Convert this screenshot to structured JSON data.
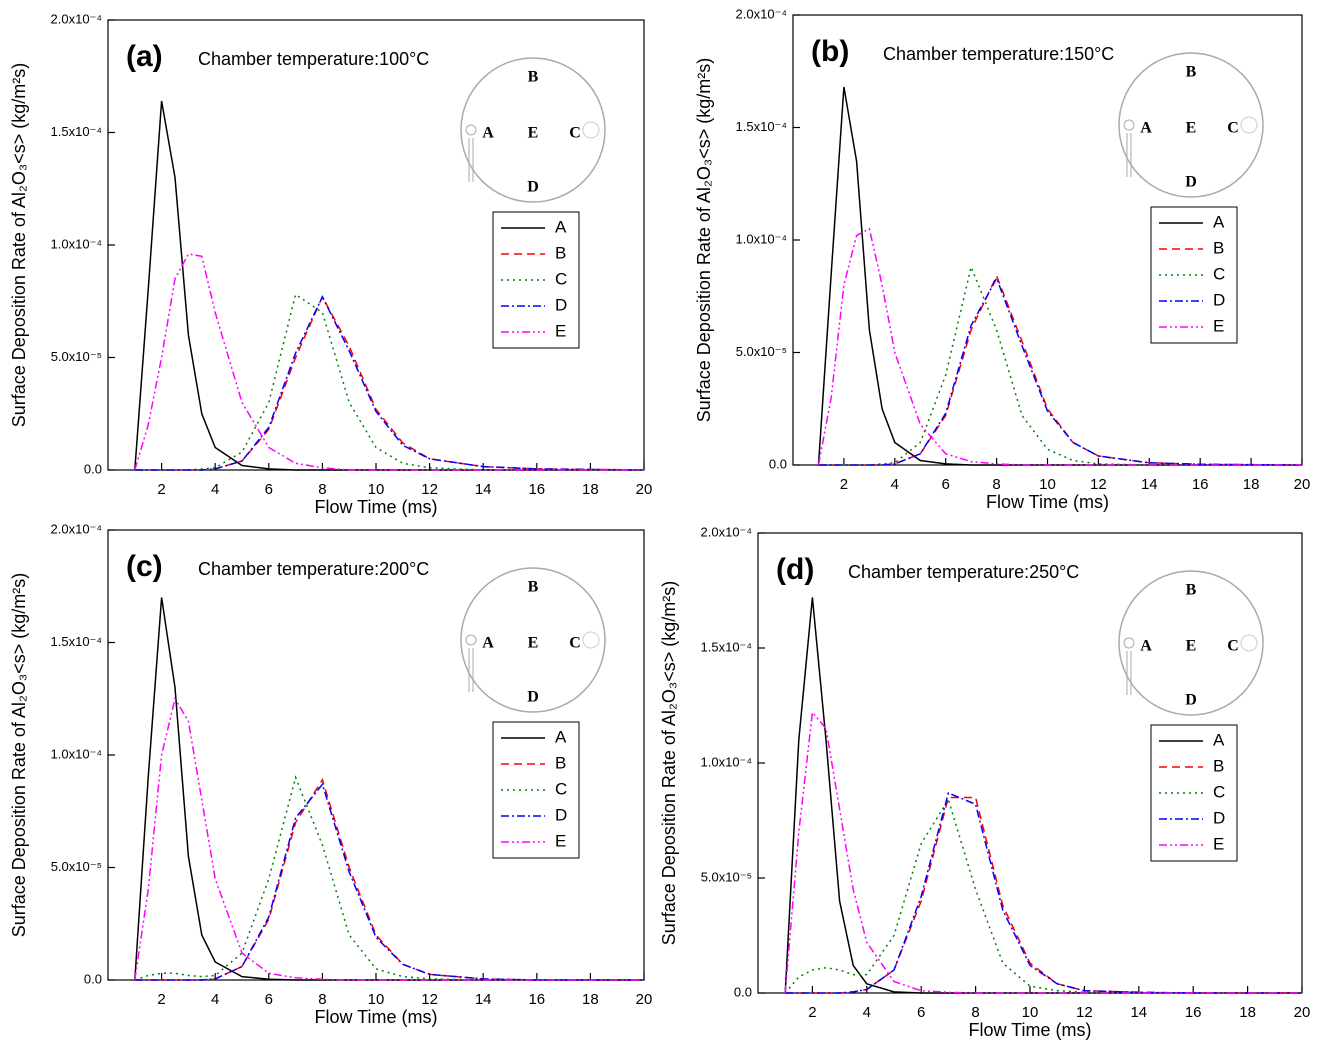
{
  "chart_data": [
    {
      "type": "line",
      "panel_label": "(a)",
      "annotation": "Chamber temperature:100°C",
      "xlabel": "Flow Time (ms)",
      "ylabel": "Surface Deposition Rate of Al₂O₃<s> (kg/m²s)",
      "inset_labels": [
        "A",
        "B",
        "C",
        "D",
        "E"
      ],
      "legend": "upper right",
      "xlim": [
        0,
        20
      ],
      "xticks": [
        2,
        4,
        6,
        8,
        10,
        12,
        14,
        16,
        18,
        20
      ],
      "ylim": [
        0,
        0.0002
      ],
      "yticks": [
        {
          "value": 0,
          "label": "0.0"
        },
        {
          "value": 5e-05,
          "label": "5.0x10⁻⁵"
        },
        {
          "value": 0.0001,
          "label": "1.0x10⁻⁴"
        },
        {
          "value": 0.00015,
          "label": "1.5x10⁻⁴"
        },
        {
          "value": 0.0002,
          "label": "2.0x10⁻⁴"
        }
      ],
      "x": [
        1,
        1.5,
        2,
        2.5,
        3,
        3.5,
        4,
        5,
        6,
        7,
        8,
        9,
        10,
        11,
        12,
        14,
        16,
        20
      ],
      "series": [
        {
          "name": "A",
          "color": "#000000",
          "dash": "solid",
          "values": [
            0,
            8e-05,
            0.000164,
            0.00013,
            6e-05,
            2.5e-05,
            1e-05,
            2e-06,
            5e-07,
            0,
            0,
            0,
            0,
            0,
            0,
            0,
            0,
            0
          ]
        },
        {
          "name": "B",
          "color": "#ff0000",
          "dash": "dashed",
          "values": [
            0,
            0,
            0,
            0,
            0,
            0,
            5e-07,
            4e-06,
            1.8e-05,
            5e-05,
            7.7e-05,
            5.5e-05,
            2.7e-05,
            1.2e-05,
            5e-06,
            1.5e-06,
            5e-07,
            0
          ]
        },
        {
          "name": "C",
          "color": "#008000",
          "dash": "dotted",
          "values": [
            0,
            0,
            0,
            0,
            0,
            5e-07,
            1e-06,
            8e-06,
            3e-05,
            7.8e-05,
            7e-05,
            3e-05,
            1e-05,
            3e-06,
            1e-06,
            0,
            0,
            0
          ]
        },
        {
          "name": "D",
          "color": "#0000ff",
          "dash": "dashdot",
          "values": [
            0,
            0,
            0,
            0,
            0,
            0,
            5e-07,
            4e-06,
            1.9e-05,
            5.2e-05,
            7.7e-05,
            5.3e-05,
            2.6e-05,
            1.1e-05,
            5e-06,
            1.5e-06,
            5e-07,
            0
          ]
        },
        {
          "name": "E",
          "color": "#ff00ff",
          "dash": "dashdotdot",
          "values": [
            0,
            2e-05,
            5e-05,
            8.5e-05,
            9.6e-05,
            9.5e-05,
            7e-05,
            3e-05,
            1e-05,
            3e-06,
            1e-06,
            0,
            0,
            0,
            0,
            0,
            0,
            0
          ]
        }
      ]
    },
    {
      "type": "line",
      "panel_label": "(b)",
      "annotation": "Chamber temperature:150°C",
      "xlabel": "Flow Time (ms)",
      "ylabel": "Surface Deposition Rate of Al₂O₃<s> (kg/m²s)",
      "inset_labels": [
        "A",
        "B",
        "C",
        "D",
        "E"
      ],
      "legend": "upper right",
      "xlim": [
        0,
        20
      ],
      "xticks": [
        2,
        4,
        6,
        8,
        10,
        12,
        14,
        16,
        18,
        20
      ],
      "ylim": [
        0,
        0.0002
      ],
      "yticks": [
        {
          "value": 0,
          "label": "0.0"
        },
        {
          "value": 5e-05,
          "label": "5.0x10⁻⁵"
        },
        {
          "value": 0.0001,
          "label": "1.0x10⁻⁴"
        },
        {
          "value": 0.00015,
          "label": "1.5x10⁻⁴"
        },
        {
          "value": 0.0002,
          "label": "2.0x10⁻⁴"
        }
      ],
      "x": [
        1,
        1.5,
        2,
        2.5,
        3,
        3.5,
        4,
        5,
        6,
        7,
        8,
        9,
        10,
        11,
        12,
        14,
        16,
        20
      ],
      "series": [
        {
          "name": "A",
          "color": "#000000",
          "dash": "solid",
          "values": [
            0,
            8.5e-05,
            0.000168,
            0.000135,
            6e-05,
            2.5e-05,
            1e-05,
            2e-06,
            5e-07,
            0,
            0,
            0,
            0,
            0,
            0,
            0,
            0,
            0
          ]
        },
        {
          "name": "B",
          "color": "#ff0000",
          "dash": "dashed",
          "values": [
            0,
            0,
            0,
            0,
            0,
            0,
            5e-07,
            5e-06,
            2.2e-05,
            6e-05,
            8.4e-05,
            5.5e-05,
            2.5e-05,
            1e-05,
            4e-06,
            1e-06,
            3e-07,
            0
          ]
        },
        {
          "name": "C",
          "color": "#008000",
          "dash": "dotted",
          "values": [
            0,
            0,
            0,
            0,
            0,
            5e-07,
            1e-06,
            1e-05,
            4e-05,
            8.8e-05,
            6e-05,
            2.2e-05,
            7e-06,
            2e-06,
            5e-07,
            0,
            0,
            0
          ]
        },
        {
          "name": "D",
          "color": "#0000ff",
          "dash": "dashdot",
          "values": [
            0,
            0,
            0,
            0,
            0,
            0,
            5e-07,
            5e-06,
            2.3e-05,
            6.2e-05,
            8.3e-05,
            5.3e-05,
            2.4e-05,
            1e-05,
            4e-06,
            1e-06,
            3e-07,
            0
          ]
        },
        {
          "name": "E",
          "color": "#ff00ff",
          "dash": "dashdotdot",
          "values": [
            0,
            3e-05,
            8e-05,
            0.000102,
            0.000105,
            8e-05,
            5e-05,
            1.8e-05,
            5e-06,
            1.5e-06,
            5e-07,
            0,
            0,
            0,
            0,
            0,
            0,
            0
          ]
        }
      ]
    },
    {
      "type": "line",
      "panel_label": "(c)",
      "annotation": "Chamber temperature:200°C",
      "xlabel": "Flow Time (ms)",
      "ylabel": "Surface Deposition Rate of Al₂O₃<s> (kg/m²s)",
      "inset_labels": [
        "A",
        "B",
        "C",
        "D",
        "E"
      ],
      "legend": "upper right",
      "xlim": [
        0,
        20
      ],
      "xticks": [
        2,
        4,
        6,
        8,
        10,
        12,
        14,
        16,
        18,
        20
      ],
      "ylim": [
        0,
        0.0002
      ],
      "yticks": [
        {
          "value": 0,
          "label": "0.0"
        },
        {
          "value": 5e-05,
          "label": "5.0x10⁻⁵"
        },
        {
          "value": 0.0001,
          "label": "1.0x10⁻⁴"
        },
        {
          "value": 0.00015,
          "label": "1.5x10⁻⁴"
        },
        {
          "value": 0.0002,
          "label": "2.0x10⁻⁴"
        }
      ],
      "x": [
        1,
        1.5,
        2,
        2.5,
        3,
        3.5,
        4,
        5,
        6,
        7,
        8,
        9,
        10,
        11,
        12,
        14,
        16,
        20
      ],
      "series": [
        {
          "name": "A",
          "color": "#000000",
          "dash": "solid",
          "values": [
            0,
            9e-05,
            0.00017,
            0.00013,
            5.5e-05,
            2e-05,
            8e-06,
            1.5e-06,
            3e-07,
            0,
            0,
            0,
            0,
            0,
            0,
            0,
            0,
            0
          ]
        },
        {
          "name": "B",
          "color": "#ff0000",
          "dash": "dashed",
          "values": [
            0,
            0,
            0,
            0,
            0,
            0,
            5e-07,
            6e-06,
            2.7e-05,
            7e-05,
            8.9e-05,
            5e-05,
            2e-05,
            7e-06,
            2.5e-06,
            5e-07,
            0,
            0
          ]
        },
        {
          "name": "C",
          "color": "#008000",
          "dash": "dotted",
          "values": [
            0,
            2e-06,
            3e-06,
            3e-06,
            2e-06,
            1.5e-06,
            2e-06,
            1.2e-05,
            4.5e-05,
            9e-05,
            6e-05,
            2e-05,
            5e-06,
            1.5e-06,
            5e-07,
            0,
            0,
            0
          ]
        },
        {
          "name": "D",
          "color": "#0000ff",
          "dash": "dashdot",
          "values": [
            0,
            0,
            0,
            0,
            0,
            0,
            5e-07,
            6e-06,
            2.8e-05,
            7.2e-05,
            8.7e-05,
            4.8e-05,
            1.9e-05,
            7e-06,
            2.5e-06,
            5e-07,
            0,
            0
          ]
        },
        {
          "name": "E",
          "color": "#ff00ff",
          "dash": "dashdotdot",
          "values": [
            0,
            4e-05,
            0.0001,
            0.000125,
            0.000115,
            8e-05,
            4.5e-05,
            1.2e-05,
            3e-06,
            1e-06,
            3e-07,
            0,
            0,
            0,
            0,
            0,
            0,
            0
          ]
        }
      ]
    },
    {
      "type": "line",
      "panel_label": "(d)",
      "annotation": "Chamber temperature:250°C",
      "xlabel": "Flow Time (ms)",
      "ylabel": "Surface Deposition Rate of Al₂O₃<s> (kg/m²s)",
      "inset_labels": [
        "A",
        "B",
        "C",
        "D",
        "E"
      ],
      "legend": "upper right",
      "xlim": [
        0,
        20
      ],
      "xticks": [
        2,
        4,
        6,
        8,
        10,
        12,
        14,
        16,
        18,
        20
      ],
      "ylim": [
        0,
        0.0002
      ],
      "yticks": [
        {
          "value": 0,
          "label": "0.0"
        },
        {
          "value": 5e-05,
          "label": "5.0x10⁻⁵"
        },
        {
          "value": 0.0001,
          "label": "1.0x10⁻⁴"
        },
        {
          "value": 0.00015,
          "label": "1.5x10⁻⁴"
        },
        {
          "value": 0.0002,
          "label": "2.0x10⁻⁴"
        }
      ],
      "x": [
        1,
        1.5,
        2,
        2.5,
        3,
        3.5,
        4,
        5,
        6,
        7,
        8,
        9,
        10,
        11,
        12,
        14,
        16,
        20
      ],
      "series": [
        {
          "name": "A",
          "color": "#000000",
          "dash": "solid",
          "values": [
            0,
            0.00011,
            0.000172,
            0.00011,
            4e-05,
            1.2e-05,
            4e-06,
            5e-07,
            0,
            0,
            0,
            0,
            0,
            0,
            0,
            0,
            0,
            0
          ]
        },
        {
          "name": "B",
          "color": "#ff0000",
          "dash": "dashed",
          "values": [
            0,
            0,
            0,
            0,
            0,
            5e-07,
            1.5e-06,
            1e-05,
            4e-05,
            8.5e-05,
            8.5e-05,
            3.8e-05,
            1.3e-05,
            4e-06,
            1e-06,
            3e-07,
            0,
            0
          ]
        },
        {
          "name": "C",
          "color": "#008000",
          "dash": "dotted",
          "values": [
            0,
            7e-06,
            1e-05,
            1.1e-05,
            1e-05,
            8e-06,
            8e-06,
            2.5e-05,
            6.5e-05,
            8.4e-05,
            4.5e-05,
            1.3e-05,
            3e-06,
            1e-06,
            3e-07,
            0,
            0,
            0
          ]
        },
        {
          "name": "D",
          "color": "#0000ff",
          "dash": "dashdot",
          "values": [
            0,
            0,
            0,
            0,
            0,
            5e-07,
            1.5e-06,
            1e-05,
            4.2e-05,
            8.7e-05,
            8.2e-05,
            3.6e-05,
            1.2e-05,
            4e-06,
            1e-06,
            3e-07,
            0,
            0
          ]
        },
        {
          "name": "E",
          "color": "#ff00ff",
          "dash": "dashdotdot",
          "values": [
            0,
            7e-05,
            0.000122,
            0.000115,
            8e-05,
            4.5e-05,
            2.2e-05,
            5e-06,
            1e-06,
            3e-07,
            0,
            0,
            0,
            0,
            0,
            0,
            0,
            0
          ]
        }
      ]
    }
  ]
}
